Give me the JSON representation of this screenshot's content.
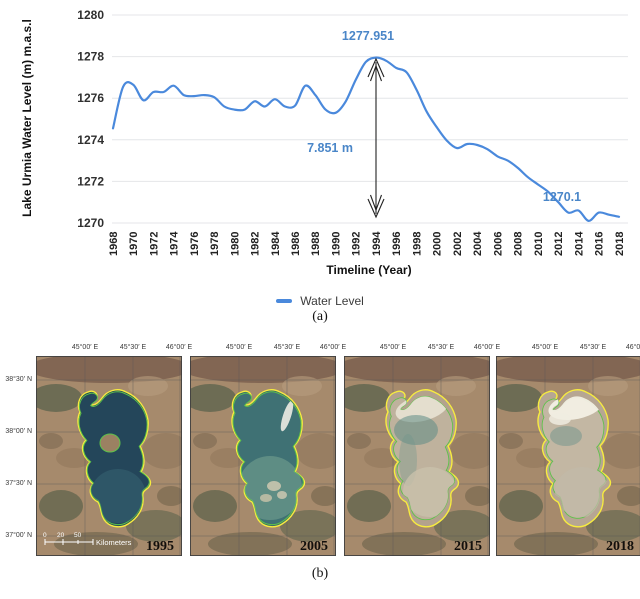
{
  "figure": {
    "caption_a": "(a)",
    "caption_b": "(b)"
  },
  "chart": {
    "ylabel": "Lake Urmia Water Level (m) m.a.s.l",
    "xlabel": "Timeline (Year)",
    "legend_label": "Water Level",
    "yticks": [
      1270,
      1272,
      1274,
      1276,
      1278,
      1280
    ],
    "xticks": [
      1968,
      1970,
      1972,
      1974,
      1976,
      1978,
      1980,
      1982,
      1984,
      1986,
      1988,
      1990,
      1992,
      1994,
      1996,
      1998,
      2000,
      2002,
      2004,
      2006,
      2008,
      2010,
      2012,
      2014,
      2016,
      2018
    ],
    "annotations": {
      "peak": "1277.951",
      "difference": "7.851 m",
      "minimum": "1270.1"
    },
    "colors": {
      "line": "#4a89dc",
      "annotation": "#4a86c8",
      "grid": "#e4e6e8"
    }
  },
  "chart_data": {
    "type": "line",
    "title": "",
    "xlabel": "Timeline (Year)",
    "ylabel": "Lake Urmia Water Level (m) m.a.s.l",
    "ylim": [
      1270,
      1280
    ],
    "grid": "horizontal",
    "legend_position": "bottom",
    "x": [
      1968,
      1969,
      1970,
      1971,
      1972,
      1973,
      1974,
      1975,
      1976,
      1977,
      1978,
      1979,
      1980,
      1981,
      1982,
      1983,
      1984,
      1985,
      1986,
      1987,
      1988,
      1989,
      1990,
      1991,
      1992,
      1993,
      1994,
      1995,
      1996,
      1997,
      1998,
      1999,
      2000,
      2001,
      2002,
      2003,
      2004,
      2005,
      2006,
      2007,
      2008,
      2009,
      2010,
      2011,
      2012,
      2013,
      2014,
      2015,
      2016,
      2017,
      2018
    ],
    "series": [
      {
        "name": "Water Level",
        "values": [
          1274.55,
          1276.55,
          1276.65,
          1275.9,
          1276.3,
          1276.3,
          1276.6,
          1276.15,
          1276.1,
          1276.15,
          1276.05,
          1275.6,
          1275.45,
          1275.45,
          1275.85,
          1275.6,
          1275.95,
          1275.6,
          1275.65,
          1276.6,
          1276.15,
          1275.45,
          1275.3,
          1275.85,
          1276.9,
          1277.75,
          1277.951,
          1277.8,
          1277.45,
          1277.25,
          1276.4,
          1275.35,
          1274.6,
          1273.95,
          1273.6,
          1273.8,
          1273.75,
          1273.55,
          1273.2,
          1273.0,
          1272.65,
          1272.2,
          1271.85,
          1271.5,
          1271.0,
          1270.5,
          1270.6,
          1270.1,
          1270.5,
          1270.4,
          1270.3
        ]
      }
    ],
    "annotations": [
      {
        "text": "1277.951",
        "x": 1994,
        "y": 1277.951
      },
      {
        "text": "7.851 m",
        "note": "vertical double arrow between peak and 1270.1 level"
      },
      {
        "text": "1270.1",
        "x": 2015,
        "y": 1270.1
      }
    ]
  },
  "maps": {
    "lon_ticks": [
      "45°00′ E",
      "45°30′ E",
      "46°00′ E"
    ],
    "lat_ticks": [
      "38°30′ N",
      "38°00′ N",
      "37°30′ N",
      "37°00′ N"
    ],
    "scalebar": {
      "ticks": [
        "0",
        "20",
        "50"
      ],
      "unit": "Kilometers"
    },
    "outline_colors": {
      "boundary": "#f7ec3f",
      "shoreline": "#5ec24a"
    },
    "panels": [
      {
        "year": "1995"
      },
      {
        "year": "2005"
      },
      {
        "year": "2015"
      },
      {
        "year": "2018"
      }
    ]
  }
}
